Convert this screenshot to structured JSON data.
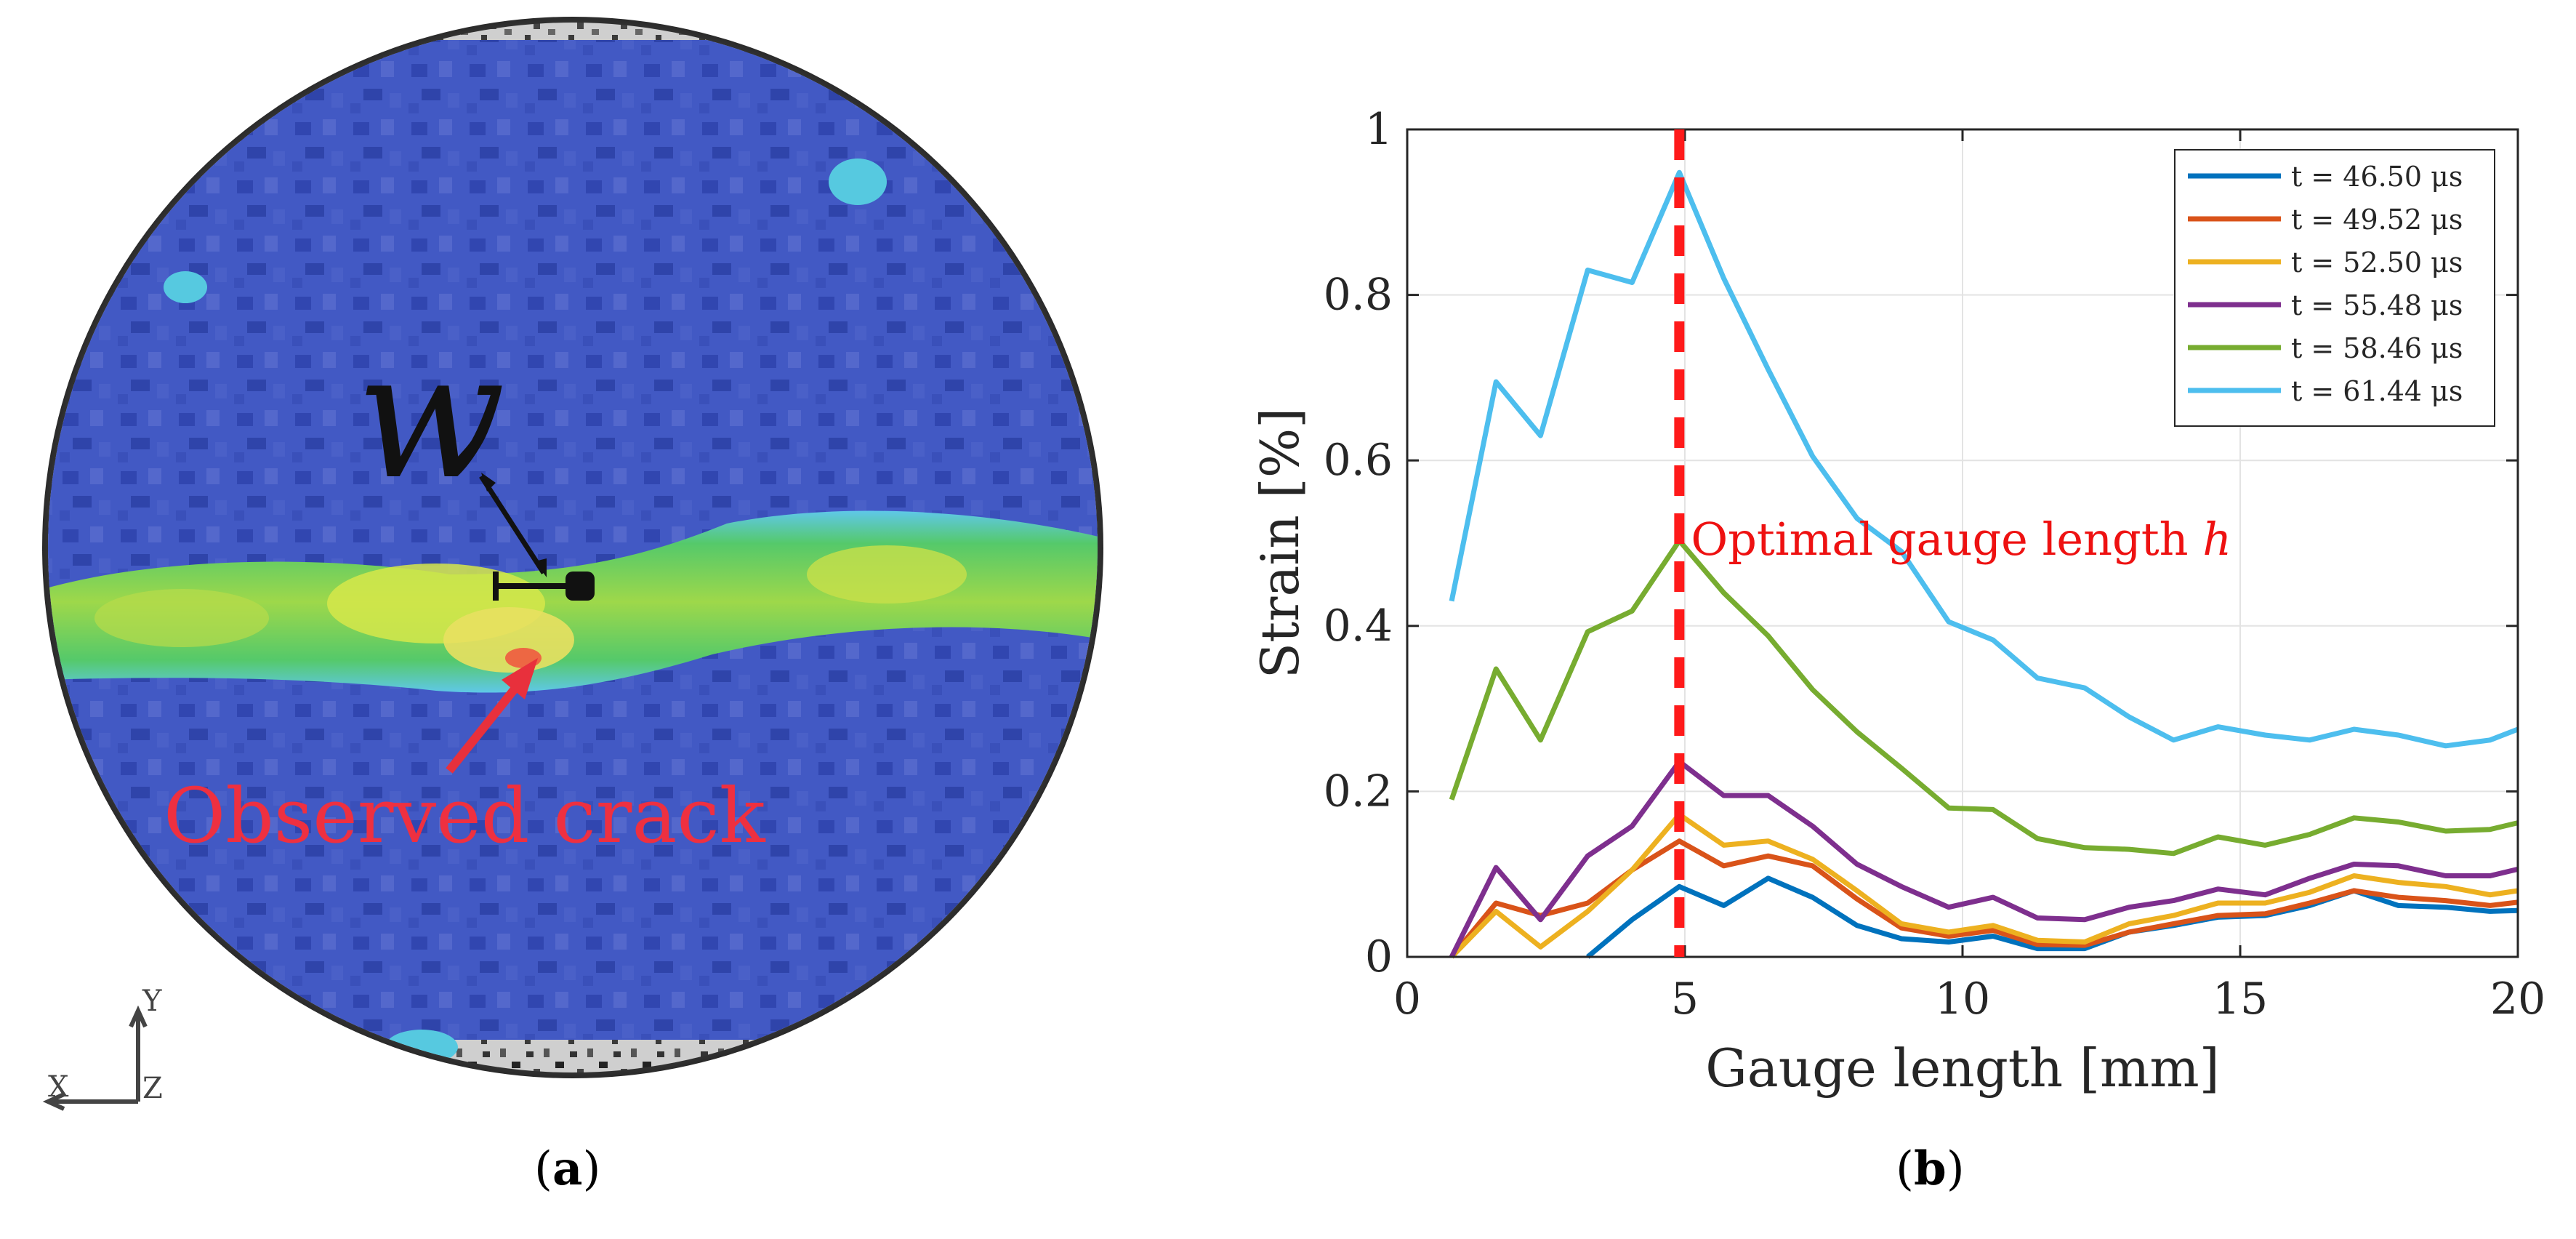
{
  "panel_a": {
    "caption_letter": "a",
    "crack_label": "Observed crack",
    "width_symbol": "w",
    "axis_y_label": "Y",
    "axis_x_label": "X",
    "axis_z_label": "Z",
    "colors": {
      "background_field": "#3b4fc0",
      "crack_band": "#57c84f",
      "crack_core": "#e8e84a",
      "crack_label": "#f0303c"
    }
  },
  "panel_b": {
    "caption_letter": "b",
    "annotation_prefix": "Optimal gauge length ",
    "annotation_symbol": "h"
  },
  "chart_data": {
    "type": "line",
    "title": "",
    "xlabel": "Gauge length [mm]",
    "ylabel": "Strain [%]",
    "xlim": [
      0,
      20
    ],
    "ylim": [
      0,
      1
    ],
    "xticks": [
      0,
      5,
      10,
      15,
      20
    ],
    "yticks": [
      0,
      0.2,
      0.4,
      0.6,
      0.8,
      1
    ],
    "ytick_labels": [
      "0",
      "0.2",
      "0.4",
      "0.6",
      "0.8",
      "1"
    ],
    "grid": true,
    "legend_position": "top-right",
    "optimal_gauge_length": 4.9,
    "x": [
      0.8,
      1.6,
      2.4,
      3.25,
      4.05,
      4.9,
      5.7,
      6.5,
      7.3,
      8.1,
      8.9,
      9.75,
      10.55,
      11.35,
      12.2,
      13.0,
      13.8,
      14.6,
      15.45,
      16.25,
      17.05,
      17.85,
      18.7,
      19.5,
      20.0
    ],
    "series": [
      {
        "name": "t = 46.50 μs",
        "color": "#0072BD",
        "values": [
          null,
          null,
          null,
          0.0,
          0.045,
          0.085,
          0.062,
          0.095,
          0.072,
          0.038,
          0.022,
          0.018,
          0.025,
          0.01,
          0.01,
          0.03,
          0.038,
          0.048,
          0.05,
          0.062,
          0.08,
          0.062,
          0.06,
          0.055,
          0.056
        ]
      },
      {
        "name": "t = 49.52 μs",
        "color": "#D95319",
        "values": [
          0.0,
          0.065,
          0.05,
          0.065,
          0.105,
          0.14,
          0.11,
          0.122,
          0.11,
          0.07,
          0.035,
          0.025,
          0.032,
          0.015,
          0.014,
          0.03,
          0.04,
          0.05,
          0.052,
          0.065,
          0.08,
          0.072,
          0.068,
          0.062,
          0.066
        ]
      },
      {
        "name": "t = 52.50 μs",
        "color": "#EDB120",
        "values": [
          0.0,
          0.055,
          0.012,
          0.055,
          0.105,
          0.172,
          0.135,
          0.14,
          0.118,
          0.08,
          0.04,
          0.03,
          0.038,
          0.02,
          0.018,
          0.04,
          0.05,
          0.065,
          0.065,
          0.078,
          0.098,
          0.09,
          0.085,
          0.075,
          0.08
        ]
      },
      {
        "name": "t = 55.48 μs",
        "color": "#7E2F8E",
        "values": [
          0.0,
          0.108,
          0.045,
          0.122,
          0.158,
          0.236,
          0.195,
          0.195,
          0.158,
          0.112,
          0.085,
          0.06,
          0.072,
          0.047,
          0.045,
          0.06,
          0.068,
          0.082,
          0.075,
          0.095,
          0.112,
          0.11,
          0.098,
          0.098,
          0.106
        ]
      },
      {
        "name": "t = 58.46 μs",
        "color": "#77AC30",
        "values": [
          0.19,
          0.348,
          0.262,
          0.393,
          0.418,
          0.503,
          0.44,
          0.388,
          0.323,
          0.272,
          0.228,
          0.18,
          0.178,
          0.143,
          0.132,
          0.13,
          0.125,
          0.145,
          0.135,
          0.148,
          0.168,
          0.163,
          0.152,
          0.154,
          0.162
        ]
      },
      {
        "name": "t = 61.44 μs",
        "color": "#4DBEEE",
        "values": [
          0.43,
          0.695,
          0.63,
          0.83,
          0.815,
          0.948,
          0.82,
          0.71,
          0.605,
          0.53,
          0.49,
          0.405,
          0.383,
          0.337,
          0.325,
          0.29,
          0.262,
          0.278,
          0.268,
          0.262,
          0.275,
          0.268,
          0.255,
          0.262,
          0.275
        ]
      }
    ]
  }
}
